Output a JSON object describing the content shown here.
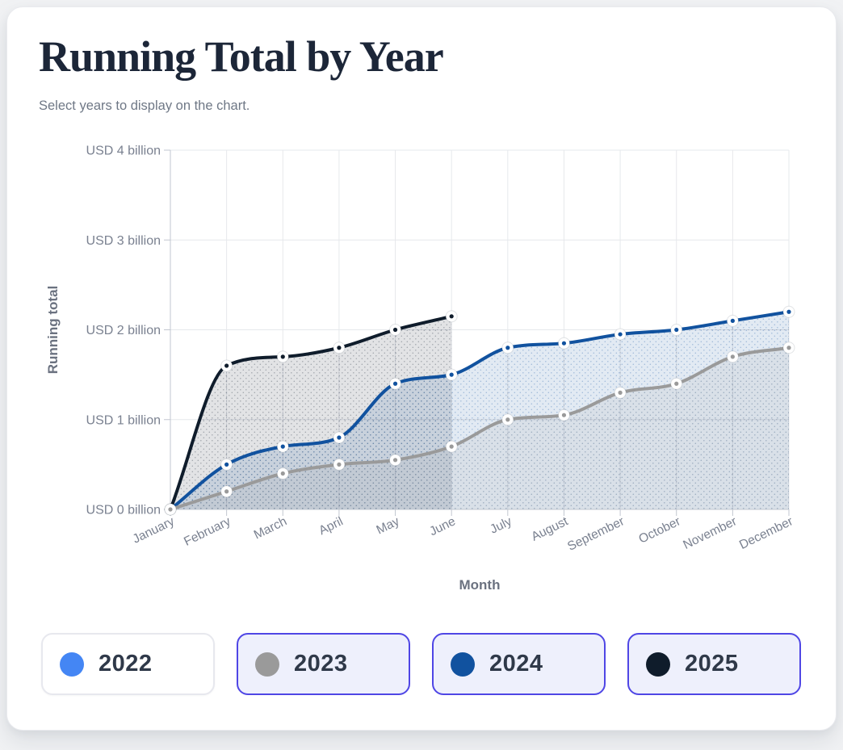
{
  "header": {
    "title": "Running Total by Year",
    "subtitle": "Select years to display on the chart."
  },
  "chart_data": {
    "type": "area",
    "title": "",
    "x": [
      "January",
      "February",
      "March",
      "April",
      "May",
      "June",
      "July",
      "August",
      "September",
      "October",
      "November",
      "December"
    ],
    "xlabel": "Month",
    "ylabel": "Running total",
    "ylim": [
      0,
      4
    ],
    "y_ticks": [
      0,
      1,
      2,
      3,
      4
    ],
    "y_tick_format": "USD {v} billion",
    "grid": true,
    "legend_position": "bottom",
    "series": [
      {
        "name": "2025",
        "color": "#0f1c2b",
        "values": [
          0,
          1.6,
          1.7,
          1.8,
          2.0,
          2.15
        ]
      },
      {
        "name": "2024",
        "color": "#11529f",
        "values": [
          0,
          0.5,
          0.7,
          0.8,
          1.4,
          1.5,
          1.8,
          1.85,
          1.95,
          2.0,
          2.1,
          2.2
        ]
      },
      {
        "name": "2023",
        "color": "#9a9a9a",
        "values": [
          0,
          0.2,
          0.4,
          0.5,
          0.55,
          0.7,
          1.0,
          1.05,
          1.3,
          1.4,
          1.7,
          1.8
        ]
      }
    ]
  },
  "legend": {
    "years": [
      {
        "label": "2022",
        "color": "#4486f4",
        "selected": false
      },
      {
        "label": "2023",
        "color": "#9a9a9a",
        "selected": true
      },
      {
        "label": "2024",
        "color": "#11529f",
        "selected": true
      },
      {
        "label": "2025",
        "color": "#0f1c2b",
        "selected": true
      }
    ]
  },
  "colors": {
    "selected_button_border": "#4f46e5",
    "selected_button_bg": "#eef0fc",
    "unselected_button_border": "#e7e8ee",
    "title_text": "#1c2638",
    "axis_text": "#7a8190",
    "gridline": "#e6e8ec"
  }
}
